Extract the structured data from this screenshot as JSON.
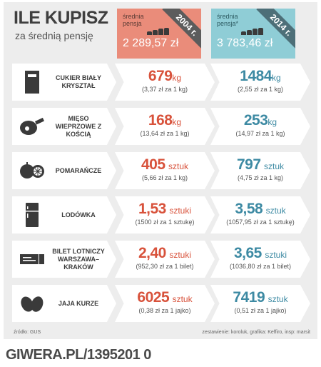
{
  "header": {
    "title": "ILE KUPISZ",
    "subtitle": "za średnią pensję"
  },
  "salary_2004": {
    "label": "średnia pensja",
    "amount": "2 289,57 zł",
    "year": "2004 r."
  },
  "salary_2014": {
    "label": "średnia pensja*",
    "amount": "3 783,46 zł",
    "year": "2014 r."
  },
  "rows": [
    {
      "icon": "sugar-bag-icon",
      "label": "CUKIER BIAŁY KRYSZTAŁ",
      "v2004": {
        "num": "679",
        "unit": "kg",
        "sub": "(3,37 zł za 1 kg)"
      },
      "v2014": {
        "num": "1484",
        "unit": "kg",
        "sub": "(2,55 zł za 1 kg)"
      }
    },
    {
      "icon": "pork-leg-icon",
      "label": "MIĘSO WIEPRZOWE Z KOŚCIĄ",
      "v2004": {
        "num": "168",
        "unit": "kg",
        "sub": "(13,64 zł za 1 kg)"
      },
      "v2014": {
        "num": "253",
        "unit": "kg",
        "sub": "(14,97 zł za 1 kg)"
      }
    },
    {
      "icon": "oranges-icon",
      "label": "POMARAŃCZE",
      "v2004": {
        "num": "405",
        "unit": "sztuk",
        "sub": "(5,66 zł za 1 kg)"
      },
      "v2014": {
        "num": "797",
        "unit": "sztuk",
        "sub": "(4,75 zł za 1 kg)"
      }
    },
    {
      "icon": "fridge-icon",
      "label": "LODÓWKA",
      "v2004": {
        "num": "1,53",
        "unit": "sztuki",
        "sub": "(1500 zł za 1 sztukę)"
      },
      "v2014": {
        "num": "3,58",
        "unit": "sztuk",
        "sub": "(1057,95 zł za 1 sztukę)"
      }
    },
    {
      "icon": "plane-ticket-icon",
      "label": "BILET LOTNICZY WARSZAWA–KRAKÓW",
      "v2004": {
        "num": "2,40",
        "unit": "sztuki",
        "sub": "(952,30 zł za 1 bilet)"
      },
      "v2014": {
        "num": "3,65",
        "unit": "sztuki",
        "sub": "(1036,80 zł za 1 bilet)"
      }
    },
    {
      "icon": "eggs-icon",
      "label": "JAJA KURZE",
      "v2004": {
        "num": "6025",
        "unit": "sztuk",
        "sub": "(0,38 zł za 1 jajko)"
      },
      "v2014": {
        "num": "7419",
        "unit": "sztuk",
        "sub": "(0,51 zł za 1 jajko)"
      }
    }
  ],
  "footer": {
    "source": "źródło: GUS",
    "credits": "zestawienie: koroluk, grafika: Keffiro, insp: marsit"
  },
  "watermark": "GIWERA.PL/1395201 0",
  "colors": {
    "red": "#d8523b",
    "blue": "#3d8aa3",
    "panel": "#ededed"
  }
}
